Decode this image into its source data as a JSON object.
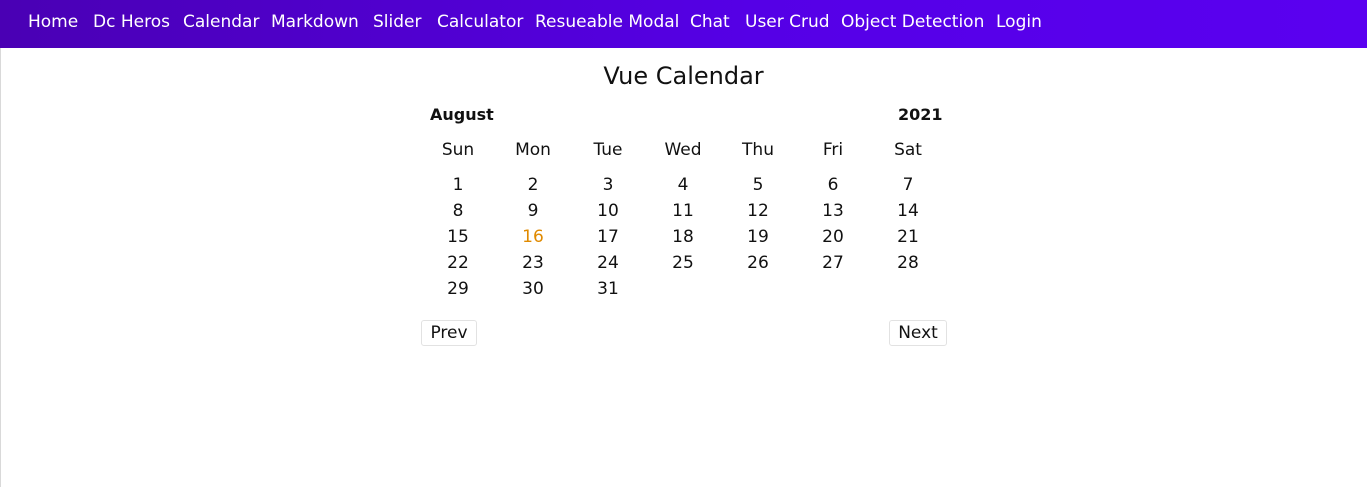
{
  "nav": {
    "items": [
      "Home",
      "Dc Heros",
      "Calendar",
      "Markdown",
      "Slider",
      "Calculator",
      "Resueable Modal",
      "Chat",
      "User Crud",
      "Object Detection",
      "Login"
    ]
  },
  "calendar": {
    "title": "Vue Calendar",
    "month": "August",
    "year": "2021",
    "weekdays": [
      "Sun",
      "Mon",
      "Tue",
      "Wed",
      "Thu",
      "Fri",
      "Sat"
    ],
    "weeks": [
      [
        "1",
        "2",
        "3",
        "4",
        "5",
        "6",
        "7"
      ],
      [
        "8",
        "9",
        "10",
        "11",
        "12",
        "13",
        "14"
      ],
      [
        "15",
        "16",
        "17",
        "18",
        "19",
        "20",
        "21"
      ],
      [
        "22",
        "23",
        "24",
        "25",
        "26",
        "27",
        "28"
      ],
      [
        "29",
        "30",
        "31"
      ]
    ],
    "today": "16",
    "today_color": "#e08a00",
    "prev_label": "Prev",
    "next_label": "Next"
  },
  "colors": {
    "nav_bg_start": "#4a00b4",
    "nav_bg_end": "#5a00f0",
    "nav_text": "#ffffff"
  }
}
